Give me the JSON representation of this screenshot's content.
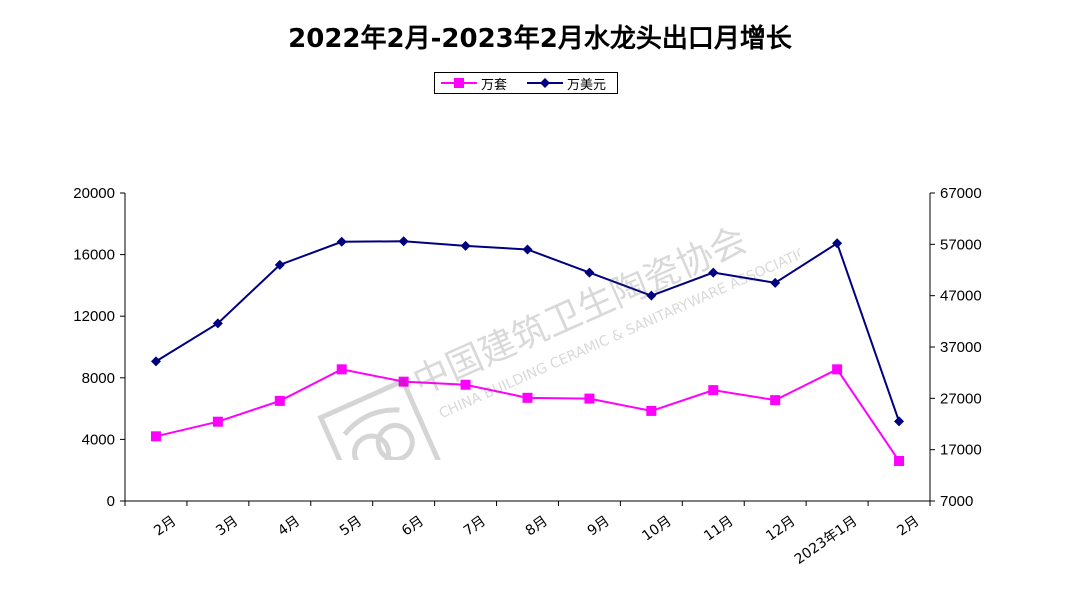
{
  "chart_data": {
    "type": "line",
    "title": "2022年2月-2023年2月水龙头出口月增长",
    "categories": [
      "2月",
      "3月",
      "4月",
      "5月",
      "6月",
      "7月",
      "8月",
      "9月",
      "10月",
      "11月",
      "12月",
      "2023年1月",
      "2月"
    ],
    "series": [
      {
        "name": "万套",
        "axis": "left",
        "color": "#ff00ff",
        "marker": "square",
        "values": [
          4200,
          5150,
          6500,
          8550,
          7750,
          7550,
          6700,
          6650,
          5850,
          7200,
          6550,
          8550,
          2600
        ]
      },
      {
        "name": "万美元",
        "axis": "right",
        "color": "#000080",
        "marker": "diamond",
        "values": [
          34200,
          41600,
          53000,
          57500,
          57600,
          56700,
          56000,
          51500,
          47000,
          51500,
          49500,
          57200,
          22500
        ]
      }
    ],
    "left_axis": {
      "ylim": [
        0,
        20000
      ],
      "ticks": [
        "0",
        "4000",
        "8000",
        "12000",
        "16000",
        "20000"
      ]
    },
    "right_axis": {
      "ylim": [
        7000,
        67000
      ],
      "ticks": [
        "7000",
        "17000",
        "27000",
        "37000",
        "47000",
        "57000",
        "67000"
      ]
    },
    "legend_position": "top-center",
    "grid": false
  },
  "watermark": {
    "cn": "中国建筑卫生陶瓷协会",
    "en": "CHINA BUILDING CERAMIC & SANITARYWARE ASSOCIATION"
  }
}
